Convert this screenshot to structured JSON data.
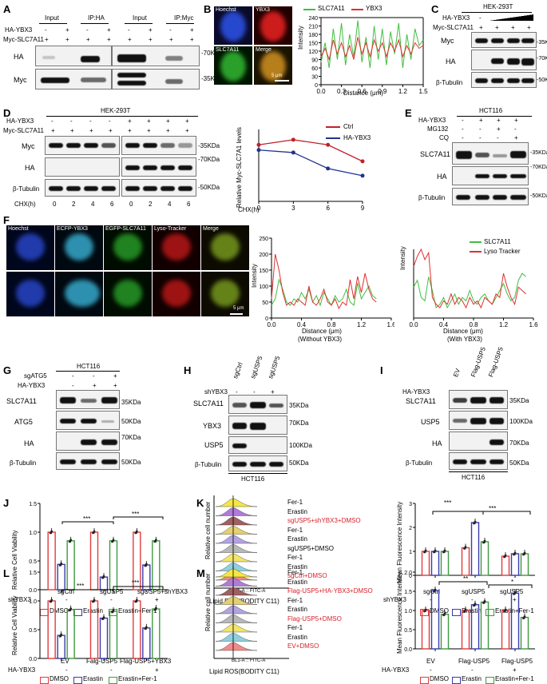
{
  "panels": {
    "A": {
      "label": "A",
      "col_labels": [
        "Input",
        "IP:HA",
        "Input",
        "IP:Myc"
      ],
      "row_labels": [
        "HA-YBX3",
        "Myc-SLC7A11"
      ],
      "row1_signs": [
        "-",
        "+",
        "-",
        "+",
        "-",
        "+",
        "-",
        "+"
      ],
      "row2_signs": [
        "+",
        "+",
        "+",
        "+",
        "+",
        "+",
        "+",
        "+"
      ],
      "blot_labels": [
        "HA",
        "Myc"
      ],
      "markers": [
        "-70KDa",
        "-35KDa"
      ]
    },
    "B": {
      "label": "B",
      "image_labels": [
        "Hoechst",
        "YBX3",
        "SLC7A11",
        "Merge"
      ],
      "scale": "5 μm",
      "chart_legend": [
        "SLC7A11",
        "YBX3"
      ],
      "ylabel": "Intensity",
      "xlabel": "Distance (μm)",
      "yticks": [
        "0",
        "30",
        "60",
        "90",
        "120",
        "150",
        "180",
        "210",
        "240"
      ],
      "xticks": [
        "0.0",
        "0.3",
        "0.6",
        "0.9",
        "1.2",
        "1.5"
      ]
    },
    "C": {
      "label": "C",
      "title": "HEK-293T",
      "row_labels": [
        "HA-YBX3",
        "Myc-SLC7A11"
      ],
      "row1_signs": [
        "-"
      ],
      "row2_signs": [
        "+",
        "+",
        "+",
        "+"
      ],
      "blot_labels": [
        "Myc",
        "HA",
        "β-Tubulin"
      ],
      "markers": [
        "-35KDa",
        "-70KDa",
        "-50KDa"
      ]
    },
    "D": {
      "label": "D",
      "title": "HEK-293T",
      "row_labels": [
        "HA-YBX3",
        "Myc-SLC7A11"
      ],
      "row1_signs": [
        "-",
        "-",
        "-",
        "-",
        "+",
        "+",
        "+",
        "+"
      ],
      "row2_signs": [
        "+",
        "+",
        "+",
        "+",
        "+",
        "+",
        "+",
        "+"
      ],
      "blot_labels": [
        "Myc",
        "HA",
        "β-Tubulin"
      ],
      "markers": [
        "-35KDa",
        "-70KDa",
        "-50KDa"
      ],
      "chx_label": "CHX(h)",
      "chx_values": [
        "0",
        "2",
        "4",
        "6",
        "0",
        "2",
        "4",
        "6"
      ],
      "chart_legend": [
        "Ctrl",
        "HA-YBX3"
      ],
      "ylabel": "Relative Myc-SLC7A1 levels",
      "xlabel": "CHX(h)",
      "xticks": [
        "0",
        "3",
        "6",
        "9"
      ]
    },
    "E": {
      "label": "E",
      "title": "HCT116",
      "row_labels": [
        "HA-YBX3",
        "MG132",
        "CQ"
      ],
      "row1_signs": [
        "-",
        "+",
        "+",
        "+"
      ],
      "row2_signs": [
        "-",
        "-",
        "+",
        "-"
      ],
      "row3_signs": [
        "-",
        "-",
        "-",
        "+"
      ],
      "blot_labels": [
        "SLC7A11",
        "HA",
        "β-Tubulin"
      ],
      "markers": [
        "-35KDa",
        "-70KDa",
        "-50KDa"
      ]
    },
    "F": {
      "label": "F",
      "image_labels": [
        "Hoechst",
        "ECFP-YBX3",
        "EGFP-SLC7A11",
        "Lyso-Tracker",
        "Merge"
      ],
      "scale": "5 μm",
      "chart1_xlabel": "Distance (μm)",
      "chart1_sublabel": "(Without YBX3)",
      "chart2_xlabel": "Distance (μm)",
      "chart2_sublabel": "(With YBX3)",
      "ylabel": "Intensity",
      "chart1_yticks": [
        "0",
        "50",
        "100",
        "150",
        "200",
        "250"
      ],
      "chart2_yticks": [
        "0",
        "50",
        "100",
        "150",
        "200"
      ],
      "xticks": [
        "0.0",
        "0.4",
        "0.8",
        "1.2",
        "1.6"
      ],
      "chart_legend": [
        "SLC7A11",
        "Lyso Tracker"
      ]
    },
    "G": {
      "label": "G",
      "title": "HCT116",
      "row_labels": [
        "sgATG5",
        "HA-YBX3"
      ],
      "row1_signs": [
        "-",
        "-",
        "+"
      ],
      "row2_signs": [
        "-",
        "+",
        "+"
      ],
      "blot_labels": [
        "SLC7A11",
        "ATG5",
        "HA",
        "β-Tubulin"
      ],
      "markers": [
        "35KDa",
        "50KDa",
        "70KDa",
        "50KDa"
      ]
    },
    "H": {
      "label": "H",
      "col_labels": [
        "sgCtrl",
        "sgUSP5",
        "sgUSP5"
      ],
      "row_labels": [
        "shYBX3"
      ],
      "row1_signs": [
        "-",
        "-",
        "+"
      ],
      "blot_labels": [
        "SLC7A11",
        "YBX3",
        "USP5",
        "β-Tubulin"
      ],
      "markers": [
        "35KDa",
        "70KDa",
        "100KDa",
        "50KDa"
      ],
      "bottom": "HCT116"
    },
    "I": {
      "label": "I",
      "col_labels": [
        "EV",
        "Flag-USP5",
        "Flag-USP5"
      ],
      "row_labels": [
        "HA-YBX3"
      ],
      "row1_signs": [
        "-",
        "-",
        "+"
      ],
      "blot_labels": [
        "SLC7A11",
        "USP5",
        "HA",
        "β-Tubulin"
      ],
      "markers": [
        "35KDa",
        "100KDa",
        "70KDa",
        "50KDa"
      ],
      "bottom": "HCT116"
    },
    "J": {
      "label": "J",
      "ylabel": "Relative Cell Viability",
      "yticks": [
        "0.0",
        "0.5",
        "1.0",
        "1.5"
      ],
      "groups": [
        "sgCtrl",
        "sgUSP5",
        "sgUSP5+shYBX3"
      ],
      "row_label": "shYBX3",
      "signs": [
        "-",
        "-",
        "+"
      ],
      "sig": [
        "***",
        "***"
      ],
      "legend": [
        "DMSO",
        "Erastin",
        "Erastin+Fer-1"
      ]
    },
    "K": {
      "label": "K",
      "ylabel": "Relative cell number",
      "xlabel": "Lipid ROS(BODITY C11)",
      "hist_labels": [
        "Fer-1",
        "Erastin",
        "sgUSP5+shYBX3+DMSO",
        "Fer-1",
        "Erastin",
        "sgUSP5+DMSO",
        "Fer-1",
        "Erastin",
        "sgCtrl+DMSO"
      ],
      "axis_small": "BL1-A :: FITC-A",
      "bar_ylabel": "Mean Fluorescence Intensity",
      "bar_yticks": [
        "0",
        "1",
        "2",
        "3"
      ],
      "groups": [
        "sgCtrl",
        "sgUSP5",
        "sgUSP5"
      ],
      "row_label": "shYBX3",
      "signs": [
        "-",
        "-",
        "+"
      ],
      "sig": [
        "***",
        "***"
      ],
      "legend": [
        "DMSO",
        "Erastin",
        "Erastin+Fer-1"
      ]
    },
    "L": {
      "label": "L",
      "ylabel": "Relative Cell Viability",
      "yticks": [
        "0.0",
        "0.5",
        "1.0",
        "1.5"
      ],
      "groups": [
        "EV",
        "Falg-USP5",
        "Flag-USP5+YBX3"
      ],
      "row_label": "HA-YBX3",
      "signs": [
        "-",
        "-",
        "+"
      ],
      "sig": [
        "***",
        "***"
      ],
      "legend": [
        "DMSO",
        "Erastin",
        "Erastin+Fer-1"
      ]
    },
    "M": {
      "label": "M",
      "ylabel": "Relative cell number",
      "xlabel": "Lipid ROS(BODITY C11)",
      "hist_labels": [
        "Fer-1",
        "Erastin",
        "Flag-USP5+HA-YBX3+DMSO",
        "Fer-1",
        "Erastin",
        "Flag-USP5+DMSO",
        "Fer-1",
        "Erastin",
        "EV+DMSO"
      ],
      "axis_small": "BL1-A :: FITC-A",
      "bar_ylabel": "Mean Fluorescence Intensity",
      "bar_yticks": [
        "0.0",
        "0.5",
        "1.0",
        "1.5",
        "2.0"
      ],
      "groups": [
        "EV",
        "Flag-USP5",
        "Flag-USP5"
      ],
      "row_label": "HA-YBX3",
      "signs": [
        "-",
        "-",
        "+"
      ],
      "sig": [
        "**",
        "*"
      ],
      "legend": [
        "DMSO",
        "Erastin",
        "Erastin+Fer-1"
      ]
    }
  },
  "chart_data": [
    {
      "type": "line",
      "id": "B-colocalization",
      "xlabel": "Distance (μm)",
      "ylabel": "Intensity",
      "xlim": [
        0,
        1.5
      ],
      "ylim": [
        0,
        240
      ],
      "series": [
        {
          "name": "SLC7A11",
          "color": "#3fbf3f",
          "x": [
            0,
            0.06,
            0.12,
            0.18,
            0.24,
            0.3,
            0.36,
            0.42,
            0.48,
            0.54,
            0.6,
            0.66,
            0.72,
            0.78,
            0.84,
            0.9,
            0.96,
            1.02,
            1.08,
            1.14,
            1.2,
            1.26,
            1.32,
            1.38,
            1.44,
            1.5
          ],
          "y": [
            80,
            150,
            60,
            200,
            90,
            220,
            70,
            180,
            100,
            230,
            80,
            170,
            60,
            210,
            90,
            200,
            70,
            190,
            110,
            220,
            60,
            180,
            90,
            200,
            140,
            160
          ]
        },
        {
          "name": "YBX3",
          "color": "#e03030",
          "x": [
            0,
            0.06,
            0.12,
            0.18,
            0.24,
            0.3,
            0.36,
            0.42,
            0.48,
            0.54,
            0.6,
            0.66,
            0.72,
            0.78,
            0.84,
            0.9,
            0.96,
            1.02,
            1.08,
            1.14,
            1.2,
            1.26,
            1.32,
            1.38,
            1.44,
            1.5
          ],
          "y": [
            100,
            130,
            90,
            160,
            110,
            150,
            100,
            140,
            90,
            170,
            110,
            150,
            100,
            160,
            120,
            150,
            100,
            150,
            120,
            160,
            100,
            140,
            110,
            150,
            130,
            140
          ]
        }
      ]
    },
    {
      "type": "line",
      "id": "D-degradation",
      "xlabel": "CHX(h)",
      "ylabel": "Relative Myc-SLC7A1 levels",
      "xlim": [
        0,
        9
      ],
      "ylim": [
        0,
        1.4
      ],
      "series": [
        {
          "name": "Ctrl",
          "color": "#c0202a",
          "x": [
            0,
            3,
            6,
            9
          ],
          "y": [
            1.1,
            1.2,
            1.1,
            0.78
          ]
        },
        {
          "name": "HA-YBX3",
          "color": "#22338f",
          "x": [
            0,
            3,
            6,
            9
          ],
          "y": [
            1.0,
            0.95,
            0.64,
            0.5
          ]
        }
      ]
    },
    {
      "type": "line",
      "id": "F-without-YBX3",
      "xlabel": "Distance (μm)",
      "ylabel": "Intensity",
      "xlim": [
        0,
        1.6
      ],
      "ylim": [
        0,
        250
      ],
      "series": [
        {
          "name": "SLC7A11",
          "color": "#3fbf3f",
          "x": [
            0,
            0.05,
            0.1,
            0.15,
            0.2,
            0.25,
            0.3,
            0.35,
            0.4,
            0.45,
            0.5,
            0.55,
            0.6,
            0.65,
            0.7,
            0.75,
            0.8,
            0.85,
            0.9,
            0.95,
            1.0,
            1.05,
            1.1,
            1.15,
            1.2,
            1.25,
            1.3,
            1.35,
            1.4
          ],
          "y": [
            40,
            60,
            120,
            90,
            50,
            40,
            60,
            50,
            80,
            60,
            90,
            50,
            70,
            40,
            80,
            60,
            40,
            70,
            50,
            60,
            90,
            50,
            40,
            110,
            60,
            80,
            100,
            70,
            60
          ]
        },
        {
          "name": "Lyso Tracker",
          "color": "#e03030",
          "x": [
            0,
            0.05,
            0.1,
            0.15,
            0.2,
            0.25,
            0.3,
            0.35,
            0.4,
            0.45,
            0.5,
            0.55,
            0.6,
            0.65,
            0.7,
            0.75,
            0.8,
            0.85,
            0.9,
            0.95,
            1.0,
            1.05,
            1.1,
            1.15,
            1.2,
            1.25,
            1.3,
            1.35,
            1.4
          ],
          "y": [
            60,
            200,
            150,
            80,
            40,
            50,
            40,
            60,
            50,
            40,
            100,
            50,
            40,
            60,
            90,
            50,
            40,
            60,
            30,
            50,
            40,
            120,
            60,
            130,
            80,
            140,
            90,
            60,
            50
          ]
        }
      ]
    },
    {
      "type": "line",
      "id": "F-with-YBX3",
      "xlabel": "Distance (μm)",
      "ylabel": "Intensity",
      "xlim": [
        0,
        1.6
      ],
      "ylim": [
        0,
        200
      ],
      "series": [
        {
          "name": "SLC7A11",
          "color": "#3fbf3f",
          "x": [
            0,
            0.05,
            0.1,
            0.15,
            0.2,
            0.25,
            0.3,
            0.35,
            0.4,
            0.45,
            0.5,
            0.55,
            0.6,
            0.65,
            0.7,
            0.75,
            0.8,
            0.85,
            0.9,
            0.95,
            1.0,
            1.05,
            1.1,
            1.15,
            1.2,
            1.25,
            1.3,
            1.35,
            1.4,
            1.45,
            1.5
          ],
          "y": [
            90,
            110,
            60,
            50,
            120,
            80,
            30,
            40,
            60,
            30,
            50,
            70,
            40,
            60,
            50,
            80,
            50,
            40,
            60,
            70,
            50,
            40,
            60,
            80,
            100,
            70,
            50,
            60,
            110,
            130,
            120
          ]
        },
        {
          "name": "Lyso Tracker",
          "color": "#e03030",
          "x": [
            0,
            0.05,
            0.1,
            0.15,
            0.2,
            0.25,
            0.3,
            0.35,
            0.4,
            0.45,
            0.5,
            0.55,
            0.6,
            0.65,
            0.7,
            0.75,
            0.8,
            0.85,
            0.9,
            0.95,
            1.0,
            1.05,
            1.1,
            1.15,
            1.2,
            1.25,
            1.3,
            1.35,
            1.4,
            1.45,
            1.5
          ],
          "y": [
            150,
            180,
            200,
            170,
            190,
            60,
            40,
            30,
            50,
            40,
            70,
            40,
            60,
            50,
            30,
            60,
            40,
            50,
            30,
            60,
            50,
            40,
            70,
            60,
            130,
            90,
            60,
            40,
            90,
            80,
            70
          ]
        }
      ]
    },
    {
      "type": "bar",
      "id": "J-viability",
      "ylabel": "Relative Cell Viability",
      "ylim": [
        0,
        1.5
      ],
      "categories": [
        "sgCtrl",
        "sgUSP5",
        "sgUSP5+shYBX3"
      ],
      "series": [
        {
          "name": "DMSO",
          "color": "#e23b3b",
          "values": [
            1.0,
            1.0,
            1.0
          ]
        },
        {
          "name": "Erastin",
          "color": "#3a3ab0",
          "values": [
            0.44,
            0.22,
            0.43
          ]
        },
        {
          "name": "Erastin+Fer-1",
          "color": "#3f9a3f",
          "values": [
            0.85,
            0.85,
            0.85
          ]
        }
      ]
    },
    {
      "type": "bar",
      "id": "K-mfi",
      "ylabel": "Mean Fluorescence Intensity",
      "ylim": [
        0,
        3
      ],
      "categories": [
        "sgCtrl",
        "sgUSP5",
        "sgUSP5"
      ],
      "series": [
        {
          "name": "DMSO",
          "color": "#e23b3b",
          "values": [
            1.0,
            1.15,
            0.8
          ]
        },
        {
          "name": "Erastin",
          "color": "#3a3ab0",
          "values": [
            1.0,
            2.2,
            0.9
          ]
        },
        {
          "name": "Erastin+Fer-1",
          "color": "#3f9a3f",
          "values": [
            1.0,
            1.4,
            0.9
          ]
        }
      ]
    },
    {
      "type": "bar",
      "id": "L-viability",
      "ylabel": "Relative Cell Viability",
      "ylim": [
        0,
        1.5
      ],
      "categories": [
        "EV",
        "Falg-USP5",
        "Flag-USP5+YBX3"
      ],
      "series": [
        {
          "name": "DMSO",
          "color": "#e23b3b",
          "values": [
            1.0,
            1.0,
            1.0
          ]
        },
        {
          "name": "Erastin",
          "color": "#3a3ab0",
          "values": [
            0.4,
            0.7,
            0.53
          ]
        },
        {
          "name": "Erastin+Fer-1",
          "color": "#3f9a3f",
          "values": [
            0.85,
            0.82,
            0.86
          ]
        }
      ]
    },
    {
      "type": "bar",
      "id": "M-mfi",
      "ylabel": "Mean Fluorescence Intensity",
      "ylim": [
        0,
        2.0
      ],
      "categories": [
        "EV",
        "Flag-USP5",
        "Flag-USP5"
      ],
      "series": [
        {
          "name": "DMSO",
          "color": "#e23b3b",
          "values": [
            1.0,
            1.0,
            1.0
          ]
        },
        {
          "name": "Erastin",
          "color": "#3a3ab0",
          "values": [
            1.52,
            1.15,
            1.45
          ]
        },
        {
          "name": "Erastin+Fer-1",
          "color": "#3f9a3f",
          "values": [
            0.9,
            1.22,
            0.82
          ]
        }
      ]
    }
  ]
}
